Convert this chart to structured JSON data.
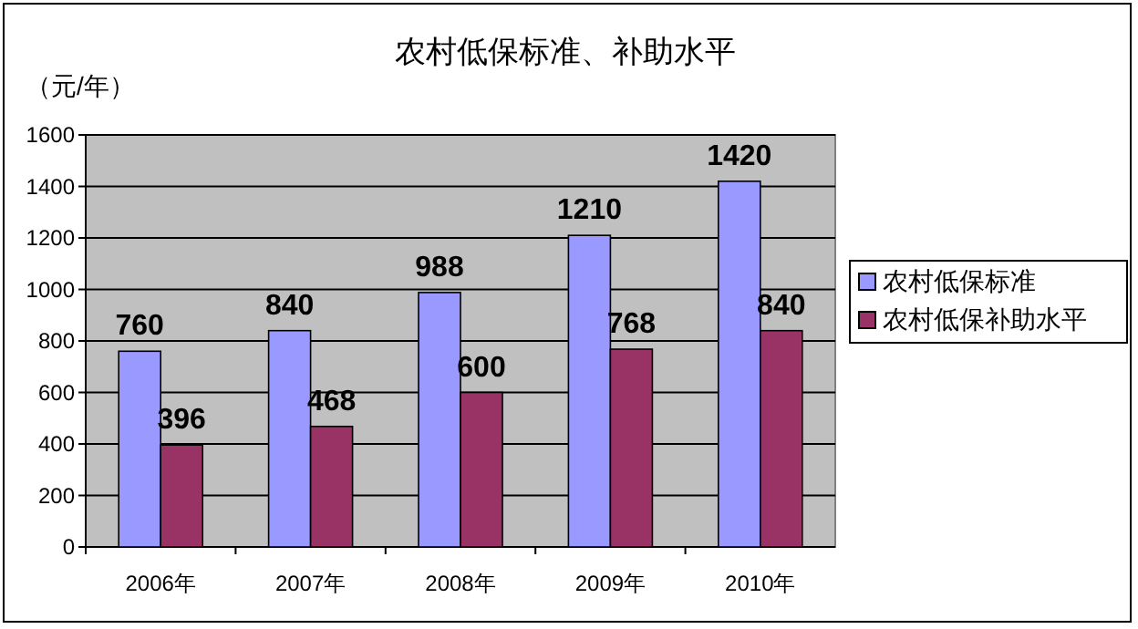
{
  "chart_data": {
    "type": "bar",
    "title": "农村低保标准、补助水平",
    "ylabel": "（元/年）",
    "categories": [
      "2006年",
      "2007年",
      "2008年",
      "2009年",
      "2010年"
    ],
    "series": [
      {
        "name": "农村低保标准",
        "color": "#9999ff",
        "values": [
          760,
          840,
          988,
          1210,
          1420
        ]
      },
      {
        "name": "农村低保补助水平",
        "color": "#993366",
        "values": [
          396,
          468,
          600,
          768,
          840
        ]
      }
    ],
    "ylim": [
      0,
      1600
    ],
    "yticks": [
      0,
      200,
      400,
      600,
      800,
      1000,
      1200,
      1400,
      1600
    ],
    "grid": "y",
    "legend": "right",
    "data_labels": true
  }
}
